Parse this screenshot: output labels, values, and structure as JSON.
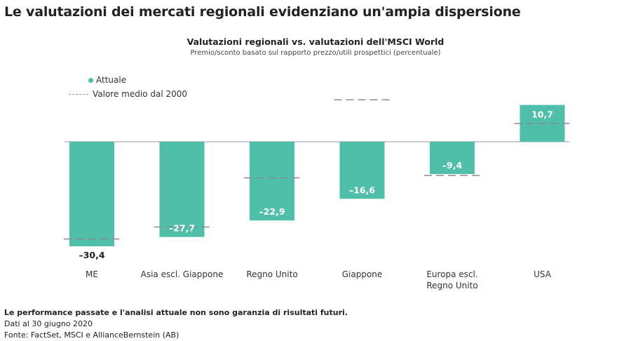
{
  "headline": "Le valutazioni dei mercati regionali evidenziano un'ampia dispersione",
  "chart_data": {
    "type": "bar",
    "title": "Valutazioni regionali vs. valutazioni dell'MSCI World",
    "subtitle": "Premio/sconto basato sul rapporto prezzo/utili prospettici (percentuale)",
    "categories": [
      "ME",
      "Asia escl. Giappone",
      "Regno Unito",
      "Giappone",
      "Europa escl. Regno Unito",
      "USA"
    ],
    "category_lines": [
      [
        "ME"
      ],
      [
        "Asia escl. Giappone"
      ],
      [
        "Regno Unito"
      ],
      [
        "Giappone"
      ],
      [
        "Europa escl.",
        "Regno Unito"
      ],
      [
        "USA"
      ]
    ],
    "series": [
      {
        "name": "Attuale",
        "values": [
          -30.4,
          -27.7,
          -22.9,
          -16.6,
          -9.4,
          10.7
        ],
        "labels": [
          "–30,4",
          "–27,7",
          "–22,9",
          "–16,6",
          "–9,4",
          "10,7"
        ]
      },
      {
        "name": "Valore medio dal 2000",
        "values": [
          -28.3,
          -24.8,
          -10.5,
          12.2,
          -9.8,
          5.3
        ]
      }
    ],
    "colors": {
      "bar": "#4fbfaa",
      "avg_line": "#8c8c8c",
      "zero_line": "#9a9a9a",
      "label_inside": "#ffffff",
      "label_outside": "#222222"
    },
    "legend": {
      "position": "top-left",
      "current": "Attuale",
      "average": "Valore medio dal 2000"
    },
    "ylim": [
      -35,
      12
    ],
    "grid": false
  },
  "footnote": {
    "disclaimer": "Le performance passate e l'analisi attuale non sono garanzia di risultati futuri.",
    "date": "Dati al 30 giugno 2020",
    "source": "Fonte: FactSet, MSCI e AllianceBernstein (AB)"
  }
}
